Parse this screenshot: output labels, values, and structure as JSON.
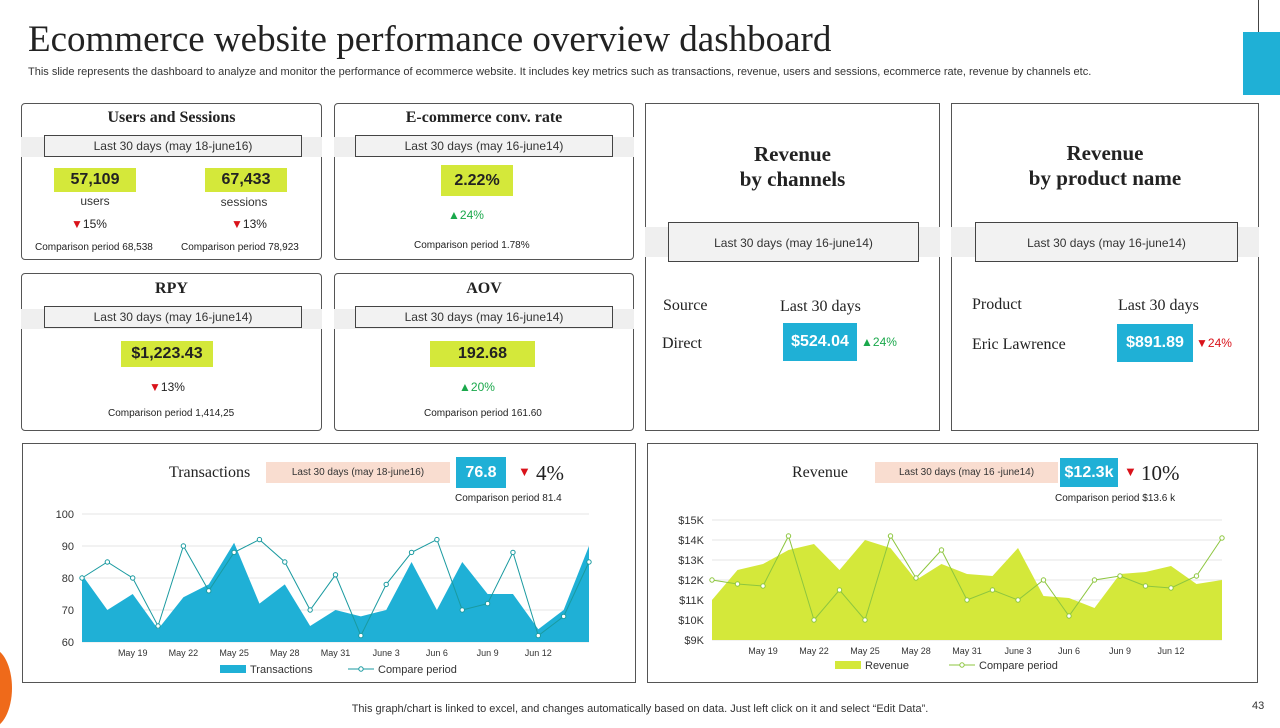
{
  "header": {
    "title": "Ecommerce website performance overview dashboard",
    "subtitle": "This slide represents the dashboard to analyze and monitor the performance of ecommerce website. It includes key metrics such as transactions, revenue, users and sessions, ecommerce rate, revenue by channels etc."
  },
  "users_sessions": {
    "title": "Users and Sessions",
    "period": "Last 30 days (may 18-june16)",
    "users_value": "57,109",
    "users_label": "users",
    "users_change": "15%",
    "users_comparison": "Comparison period 68,538",
    "sessions_value": "67,433",
    "sessions_label": "sessions",
    "sessions_change": "13%",
    "sessions_comparison": "Comparison period 78,923"
  },
  "conv_rate": {
    "title": "E-commerce conv. rate",
    "period": "Last 30 days (may 16-june14)",
    "value": "2.22%",
    "change": "24%",
    "comparison": "Comparison period 1.78%"
  },
  "rpy": {
    "title": "RPY",
    "period": "Last 30 days (may 16-june14)",
    "value": "$1,223.43",
    "change": "13%",
    "comparison": "Comparison period 1,414,25"
  },
  "aov": {
    "title": "AOV",
    "period": "Last 30 days (may 16-june14)",
    "value": "192.68",
    "change": "20%",
    "comparison": "Comparison period 161.60"
  },
  "rev_channels": {
    "title_line1": "Revenue",
    "title_line2": "by channels",
    "period": "Last 30 days (may 16-june14)",
    "col1_header": "Source",
    "col2_header": "Last 30 days",
    "row_label": "Direct",
    "row_value": "$524.04",
    "row_change": "24%"
  },
  "rev_product": {
    "title_line1": "Revenue",
    "title_line2": "by product name",
    "period": "Last 30 days (may 16-june14)",
    "col1_header": "Product",
    "col2_header": "Last 30 days",
    "row_label": "Eric Lawrence",
    "row_value": "$891.89",
    "row_change": "24%"
  },
  "transactions_panel": {
    "title": "Transactions",
    "period": "Last 30 days (may 18-june16)",
    "value": "76.8",
    "change": "4%",
    "comparison": "Comparison period 81.4"
  },
  "revenue_panel": {
    "title": "Revenue",
    "period": "Last 30 days (may 16 -june14)",
    "value": "$12.3k",
    "change": "10%",
    "comparison": "Comparison period $13.6 k"
  },
  "footer": {
    "note": "This graph/chart is linked to excel,  and changes automatically based on data. Just left click on it and select “Edit Data”.",
    "page": "43"
  },
  "colors": {
    "accent_blue": "#1fb0d6",
    "accent_yellowgreen": "#d4e83a",
    "down_red": "#d9121a",
    "up_green": "#1aa84b",
    "compare_line": "#1a9aa0",
    "revenue_compare_line": "#8dc63f"
  },
  "chart_data": [
    {
      "type": "area",
      "ylim": [
        60,
        100
      ],
      "yticks": [
        60,
        70,
        80,
        90,
        100
      ],
      "xtick_labels": [
        "May 19",
        "May 22",
        "May 25",
        "May 28",
        "May 31",
        "June 3",
        "Jun 6",
        "Jun 9",
        "Jun 12"
      ],
      "series": [
        {
          "name": "Transactions",
          "kind": "area",
          "color": "#1fb0d6",
          "values": [
            81,
            70,
            75,
            64,
            74,
            78,
            91,
            72,
            78,
            65,
            70,
            68,
            70,
            85,
            70,
            85,
            75,
            75,
            64,
            70,
            90
          ]
        },
        {
          "name": "Compare period",
          "kind": "line",
          "color": "#1a9aa0",
          "values": [
            80,
            85,
            80,
            65,
            90,
            76,
            88,
            92,
            85,
            70,
            81,
            62,
            78,
            88,
            92,
            70,
            72,
            88,
            62,
            68,
            85
          ]
        }
      ]
    },
    {
      "type": "area",
      "ylim": [
        9000,
        15000
      ],
      "yticks": [
        "$9K",
        "$10K",
        "$11K",
        "$12K",
        "$13K",
        "$14K",
        "$15K"
      ],
      "xtick_labels": [
        "May 19",
        "May 22",
        "May 25",
        "May 28",
        "May 31",
        "June 3",
        "Jun 6",
        "Jun 9",
        "Jun 12"
      ],
      "series": [
        {
          "name": "Revenue",
          "kind": "area",
          "color": "#d4e83a",
          "values": [
            11000,
            12500,
            12800,
            13500,
            13800,
            12500,
            14000,
            13600,
            12000,
            12800,
            12300,
            12200,
            13600,
            11200,
            11100,
            10600,
            12300,
            12400,
            12700,
            11800,
            12000
          ]
        },
        {
          "name": "Compare period",
          "kind": "line",
          "color": "#8dc63f",
          "values": [
            12000,
            11800,
            11700,
            14200,
            10000,
            11500,
            10000,
            14200,
            12100,
            13500,
            11000,
            11500,
            11000,
            12000,
            10200,
            12000,
            12200,
            11700,
            11600,
            12200,
            14100
          ]
        }
      ]
    }
  ]
}
